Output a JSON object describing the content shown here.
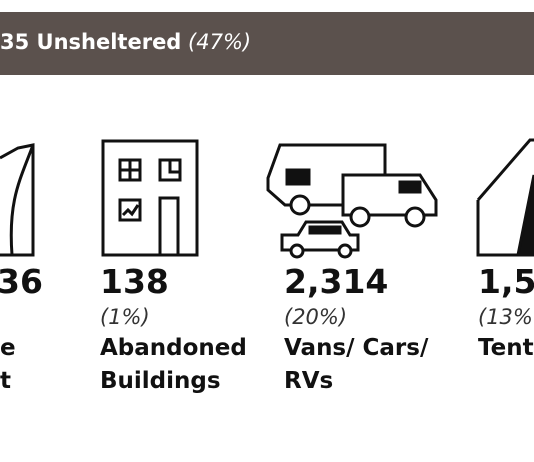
{
  "header": {
    "title": "35 Unsheltered",
    "percent": "(47%)"
  },
  "columns": [
    {
      "number": "36",
      "percent": "",
      "label": [
        "e",
        "t"
      ]
    },
    {
      "number": "138",
      "percent": "(1%)",
      "label": [
        "Abandoned",
        "Buildings"
      ]
    },
    {
      "number": "2,314",
      "percent": "(20%)",
      "label": [
        "Vans/ Cars/",
        "RVs"
      ]
    },
    {
      "number": "1,5",
      "percent": "(13%",
      "label": [
        "Tent"
      ]
    }
  ]
}
